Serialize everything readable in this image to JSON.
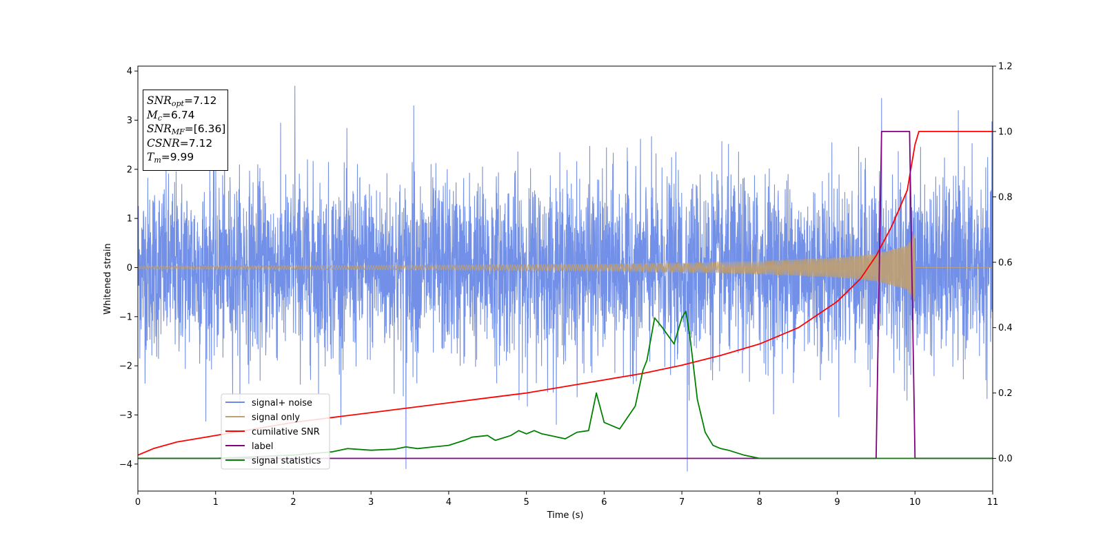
{
  "chart_data": {
    "type": "line",
    "title": "",
    "xlabel": "Time (s)",
    "ylabel": "Whitened strain",
    "y2label": "",
    "xlim": [
      0,
      11
    ],
    "ylim": [
      -4.55,
      4.1
    ],
    "y2lim": [
      -0.1,
      1.2
    ],
    "x_ticks": [
      0,
      1,
      2,
      3,
      4,
      5,
      6,
      7,
      8,
      9,
      10,
      11
    ],
    "y_ticks": [
      4,
      3,
      2,
      1,
      0,
      -1,
      -2,
      -3,
      -4
    ],
    "y_tick_labels": [
      "4",
      "3",
      "2",
      "1",
      "0",
      "−1",
      "−2",
      "−3",
      "−4"
    ],
    "y2_ticks": [
      1.2,
      1.0,
      0.8,
      0.6,
      0.4,
      0.2,
      0.0
    ],
    "y2_tick_labels": [
      "1.2",
      "1.0",
      "0.8",
      "0.6",
      "0.4",
      "0.2",
      "0.0"
    ],
    "grid": false,
    "legend_position": "lower-left",
    "series": [
      {
        "name": "signal+ noise",
        "axis": "left",
        "color": "#6a8ae6",
        "noise_sigma": 0.9,
        "noise_extremes": [
          [
            2.02,
            3.7
          ],
          [
            3.45,
            -4.1
          ],
          [
            3.55,
            3.3
          ],
          [
            7.07,
            -4.15
          ],
          [
            9.57,
            3.45
          ]
        ],
        "x_range": [
          0,
          11
        ]
      },
      {
        "name": "signal only",
        "axis": "left",
        "color": "#c0a070",
        "envelope": {
          "x": [
            0,
            2,
            4,
            6,
            7,
            8,
            9,
            9.5,
            9.9,
            10.0
          ],
          "amplitude": [
            0.03,
            0.04,
            0.05,
            0.07,
            0.09,
            0.13,
            0.2,
            0.28,
            0.45,
            0.7
          ]
        }
      },
      {
        "name": "cumilative SNR",
        "axis": "right",
        "color": "#ff0000",
        "x": [
          0,
          0.2,
          0.5,
          1,
          1.5,
          2,
          2.5,
          3,
          3.5,
          4,
          4.5,
          5,
          5.5,
          6,
          6.5,
          7,
          7.5,
          8,
          8.5,
          9,
          9.3,
          9.5,
          9.7,
          9.9,
          10.0,
          10.05,
          11
        ],
        "y": [
          0.01,
          0.03,
          0.05,
          0.07,
          0.09,
          0.11,
          0.125,
          0.14,
          0.155,
          0.17,
          0.185,
          0.2,
          0.22,
          0.24,
          0.26,
          0.285,
          0.315,
          0.35,
          0.4,
          0.48,
          0.55,
          0.62,
          0.71,
          0.82,
          0.96,
          1.0,
          1.0
        ]
      },
      {
        "name": "label",
        "axis": "right",
        "color": "#800080",
        "x": [
          0,
          9.5,
          9.57,
          9.93,
          10.0,
          11
        ],
        "y": [
          0,
          0,
          1,
          1,
          0,
          0
        ]
      },
      {
        "name": "signal statistics",
        "axis": "right",
        "color": "#008000",
        "x": [
          0,
          1,
          2,
          2.5,
          2.7,
          3,
          3.3,
          3.45,
          3.6,
          3.8,
          4.0,
          4.2,
          4.3,
          4.5,
          4.6,
          4.8,
          4.9,
          5.0,
          5.1,
          5.2,
          5.3,
          5.5,
          5.65,
          5.8,
          5.9,
          6.0,
          6.2,
          6.4,
          6.5,
          6.55,
          6.65,
          6.75,
          6.9,
          7.0,
          7.05,
          7.1,
          7.2,
          7.3,
          7.4,
          7.5,
          7.6,
          7.8,
          8.0,
          9.0,
          11
        ],
        "y": [
          0.0,
          0.0,
          0.01,
          0.02,
          0.03,
          0.025,
          0.028,
          0.035,
          0.03,
          0.035,
          0.04,
          0.055,
          0.065,
          0.07,
          0.055,
          0.07,
          0.085,
          0.075,
          0.085,
          0.075,
          0.07,
          0.06,
          0.08,
          0.085,
          0.2,
          0.11,
          0.09,
          0.16,
          0.27,
          0.3,
          0.43,
          0.4,
          0.35,
          0.43,
          0.45,
          0.38,
          0.18,
          0.08,
          0.04,
          0.03,
          0.025,
          0.01,
          0.0,
          0.0,
          0.0
        ]
      }
    ],
    "annotation_box": {
      "lines": [
        {
          "sym": "SNR",
          "sub": "opt",
          "val": "=7.12"
        },
        {
          "sym": "M",
          "sub": "c",
          "val": "=6.74"
        },
        {
          "sym": "SNR",
          "sub": "MF",
          "val": "=[6.36]"
        },
        {
          "sym": "CSNR",
          "sub": "",
          "val": "=7.12"
        },
        {
          "sym": "T",
          "sub": "m",
          "val": "=9.99"
        }
      ]
    }
  }
}
